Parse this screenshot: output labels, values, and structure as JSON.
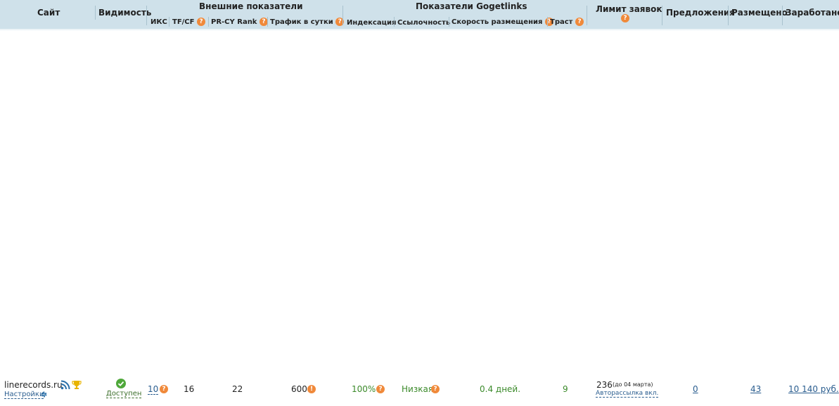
{
  "header": {
    "site": "Сайт",
    "visibility": "Видимость",
    "external_group": "Внешние показатели",
    "iks": "ИКС",
    "tfcf": "TF/CF",
    "prcy": "PR-CY Rank",
    "traffic": "Трафик в сутки",
    "gogetlinks_group": "Показатели Gogetlinks",
    "indexing": "Индексация",
    "linkiness": "Ссылочность",
    "placement_speed": "Скорость размещения",
    "trust": "Траст",
    "limit": "Лимит заявок",
    "offers": "Предложения",
    "placed": "Размещено",
    "earned": "Заработано"
  },
  "row": {
    "site": "linerecords.ru",
    "settings": "Настройки",
    "visibility_status": "Доступен",
    "iks": "10",
    "tfcf": "16",
    "prcy": "22",
    "traffic": "600",
    "indexing": "100%",
    "linkiness": "Низкая",
    "placement_speed": "0.4 дней.",
    "trust": "9",
    "limit": "236",
    "limit_note": "(до 04 марта)",
    "auto_mailing": "Авторассылка вкл.",
    "offers": "0",
    "placed": "43",
    "earned": "10 140 руб."
  },
  "icons": {
    "help": "question-icon",
    "rss": "rss-icon",
    "trophy": "trophy-icon",
    "gear": "gear-icon",
    "check": "check-circle-icon",
    "warning": "exclamation-icon"
  },
  "colors": {
    "header_bg": "#cfe1ea",
    "help_icon": "#f0893a",
    "good_value": "#3b8a2a",
    "link": "#2a5d8f"
  }
}
